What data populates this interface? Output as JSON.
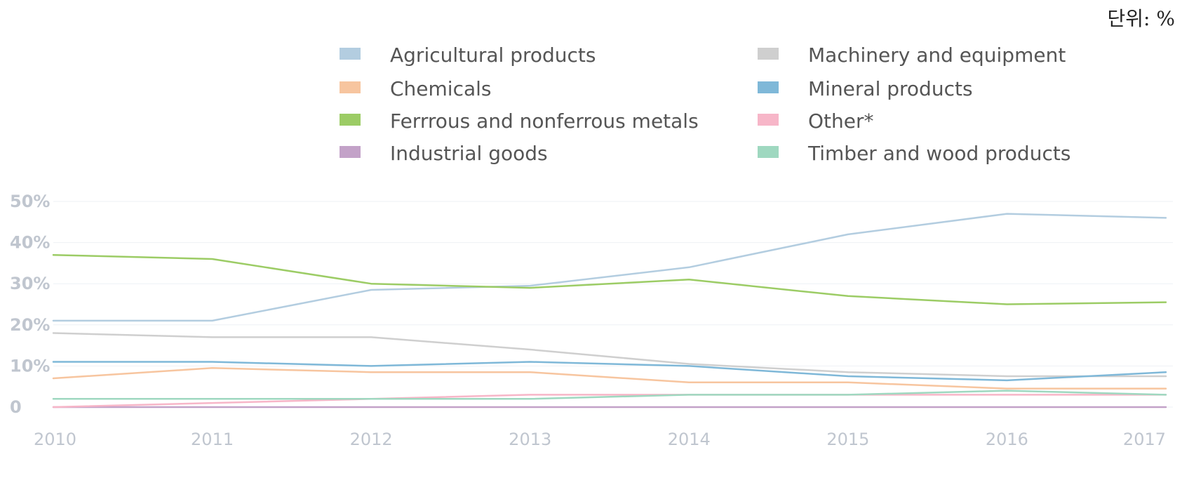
{
  "unit_label": "단위: %",
  "chart_data": {
    "type": "line",
    "title": "",
    "xlabel": "",
    "ylabel": "",
    "x": [
      "2010",
      "2011",
      "2012",
      "2013",
      "2014",
      "2015",
      "2016",
      "2017"
    ],
    "ylim": [
      0,
      50
    ],
    "yticks": [
      {
        "value": 0,
        "label": "0"
      },
      {
        "value": 10,
        "label": "10%"
      },
      {
        "value": 20,
        "label": "20%"
      },
      {
        "value": 30,
        "label": "30%"
      },
      {
        "value": 40,
        "label": "40%"
      },
      {
        "value": 50,
        "label": "50%"
      }
    ],
    "grid": true,
    "legend_position": "top-right",
    "series": [
      {
        "name": "Agricultural products",
        "color": "#b3cde0",
        "values": [
          21,
          21,
          28.5,
          29.5,
          34,
          42,
          47,
          46
        ]
      },
      {
        "name": "Chemicals",
        "color": "#f7c59f",
        "values": [
          7,
          9.5,
          8.5,
          8.5,
          6,
          6,
          4.5,
          4.5
        ]
      },
      {
        "name": "Ferrrous and nonferrous metals",
        "color": "#9ccc65",
        "values": [
          37,
          36,
          30,
          29,
          31,
          27,
          25,
          25.5
        ]
      },
      {
        "name": "Industrial goods",
        "color": "#c3a2c8",
        "values": [
          0,
          0,
          0,
          0,
          0,
          0,
          0,
          0
        ]
      },
      {
        "name": "Machinery and equipment",
        "color": "#cfcfcf",
        "values": [
          18,
          17,
          17,
          14,
          10.5,
          8.5,
          7.5,
          7.5
        ]
      },
      {
        "name": "Mineral products",
        "color": "#7fb8d8",
        "values": [
          11,
          11,
          10,
          11,
          10,
          7.5,
          6.5,
          8.5
        ]
      },
      {
        "name": "Other*",
        "color": "#f7b6c8",
        "values": [
          0,
          1,
          2,
          3,
          3,
          3,
          3,
          3
        ]
      },
      {
        "name": "Timber and wood products",
        "color": "#9fd8c0",
        "values": [
          2,
          2,
          2,
          2,
          3,
          3,
          4,
          3
        ]
      }
    ]
  }
}
